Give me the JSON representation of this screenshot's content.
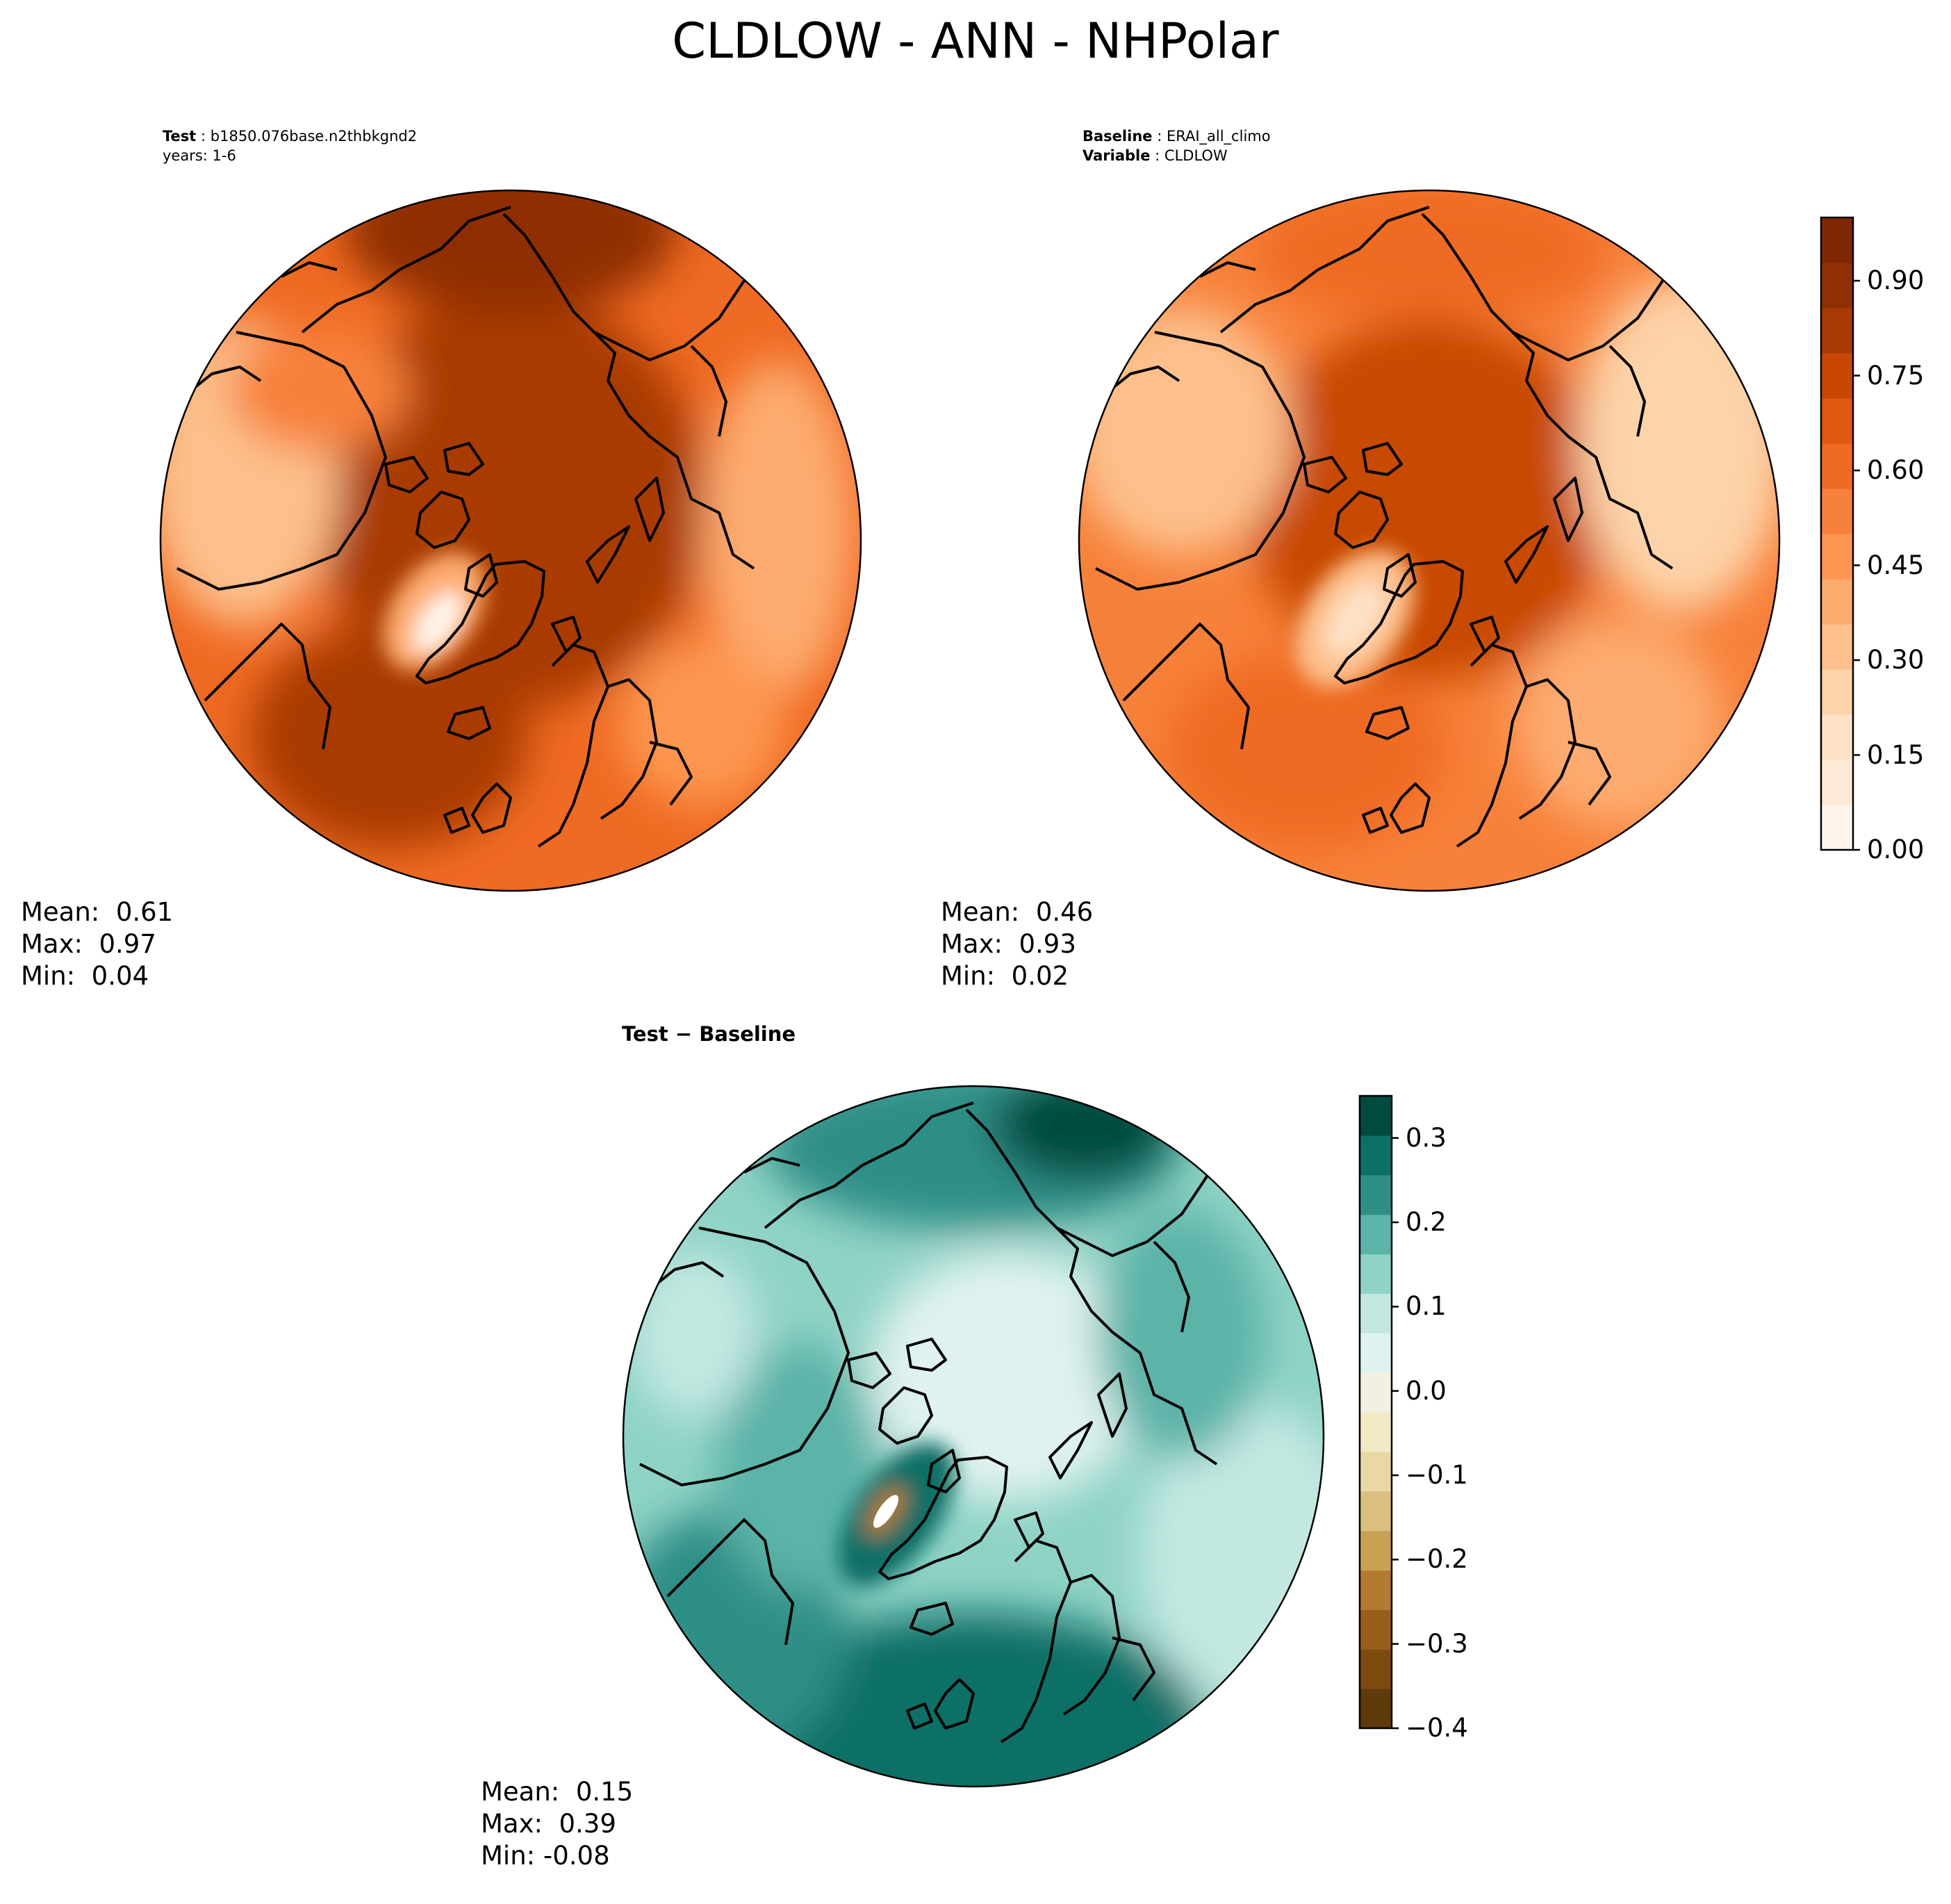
{
  "title": "CLDLOW - ANN - NHPolar",
  "panels": {
    "test": {
      "header_key": "Test",
      "header_value": "b1850.076base.n2thbkgnd2",
      "header_line2": "years: 1-6",
      "mean_label": "Mean:",
      "mean": "0.61",
      "max_label": "Max:",
      "max": "0.97",
      "min_label": "Min:",
      "min": "0.04"
    },
    "baseline": {
      "header_key": "Baseline",
      "header_value": "ERAI_all_climo",
      "header_key2": "Variable",
      "header_value2": "CLDLOW",
      "mean_label": "Mean:",
      "mean": "0.46",
      "max_label": "Max:",
      "max": "0.93",
      "min_label": "Min:",
      "min": "0.02"
    },
    "diff": {
      "header_left": "Test",
      "header_op": "−",
      "header_right": "Baseline",
      "mean_label": "Mean:",
      "mean": "0.15",
      "max_label": "Max:",
      "max": "0.39",
      "min_label": "Min:",
      "min": "-0.08"
    }
  },
  "chart_data": [
    {
      "type": "heatmap",
      "projection": "north polar stereographic",
      "panel": "test",
      "colormap": "Oranges",
      "color_range": [
        0.0,
        1.0
      ],
      "stats": {
        "mean": 0.61,
        "max": 0.97,
        "min": 0.04
      }
    },
    {
      "type": "heatmap",
      "projection": "north polar stereographic",
      "panel": "baseline",
      "colormap": "Oranges",
      "color_range": [
        0.0,
        1.0
      ],
      "stats": {
        "mean": 0.46,
        "max": 0.93,
        "min": 0.02
      }
    },
    {
      "type": "heatmap",
      "projection": "north polar stereographic",
      "panel": "diff",
      "colormap": "BrBG",
      "color_range": [
        -0.4,
        0.35
      ],
      "stats": {
        "mean": 0.15,
        "max": 0.39,
        "min": -0.08
      }
    }
  ],
  "colorbar_top": {
    "range": [
      0.0,
      1.0
    ],
    "tick_values": [
      0.0,
      0.15,
      0.3,
      0.45,
      0.6,
      0.75,
      0.9
    ],
    "tick_labels": [
      "0.00",
      "0.15",
      "0.30",
      "0.45",
      "0.60",
      "0.75",
      "0.90"
    ],
    "colors": [
      "#fff5eb",
      "#feebd7",
      "#fee2c6",
      "#fdd3a9",
      "#fdc08c",
      "#fdab6f",
      "#fd9650",
      "#f7813a",
      "#ef6a22",
      "#e05910",
      "#c84803",
      "#a93a03",
      "#8f2f04",
      "#7f2704"
    ]
  },
  "colorbar_bottom": {
    "range": [
      -0.4,
      0.35
    ],
    "tick_values": [
      -0.4,
      -0.3,
      -0.2,
      -0.1,
      0.0,
      0.1,
      0.2,
      0.3
    ],
    "tick_labels": [
      "−0.4",
      "−0.3",
      "−0.2",
      "−0.1",
      "0.0",
      "0.1",
      "0.2",
      "0.3"
    ],
    "colors": [
      "#613a0a",
      "#7d4a0e",
      "#995e1b",
      "#b47a32",
      "#c9a154",
      "#dabf7e",
      "#ead7a3",
      "#f4e9c5",
      "#f3efe2",
      "#e0f2ef",
      "#c3e8e2",
      "#8fd3c6",
      "#5cb3a8",
      "#2f8f86",
      "#0e6f66",
      "#004b40"
    ]
  },
  "colors": {
    "ocean_outline": "#000000",
    "greenland_test_core": "#fff5eb",
    "greenland_diff_core": "#ffffff"
  }
}
